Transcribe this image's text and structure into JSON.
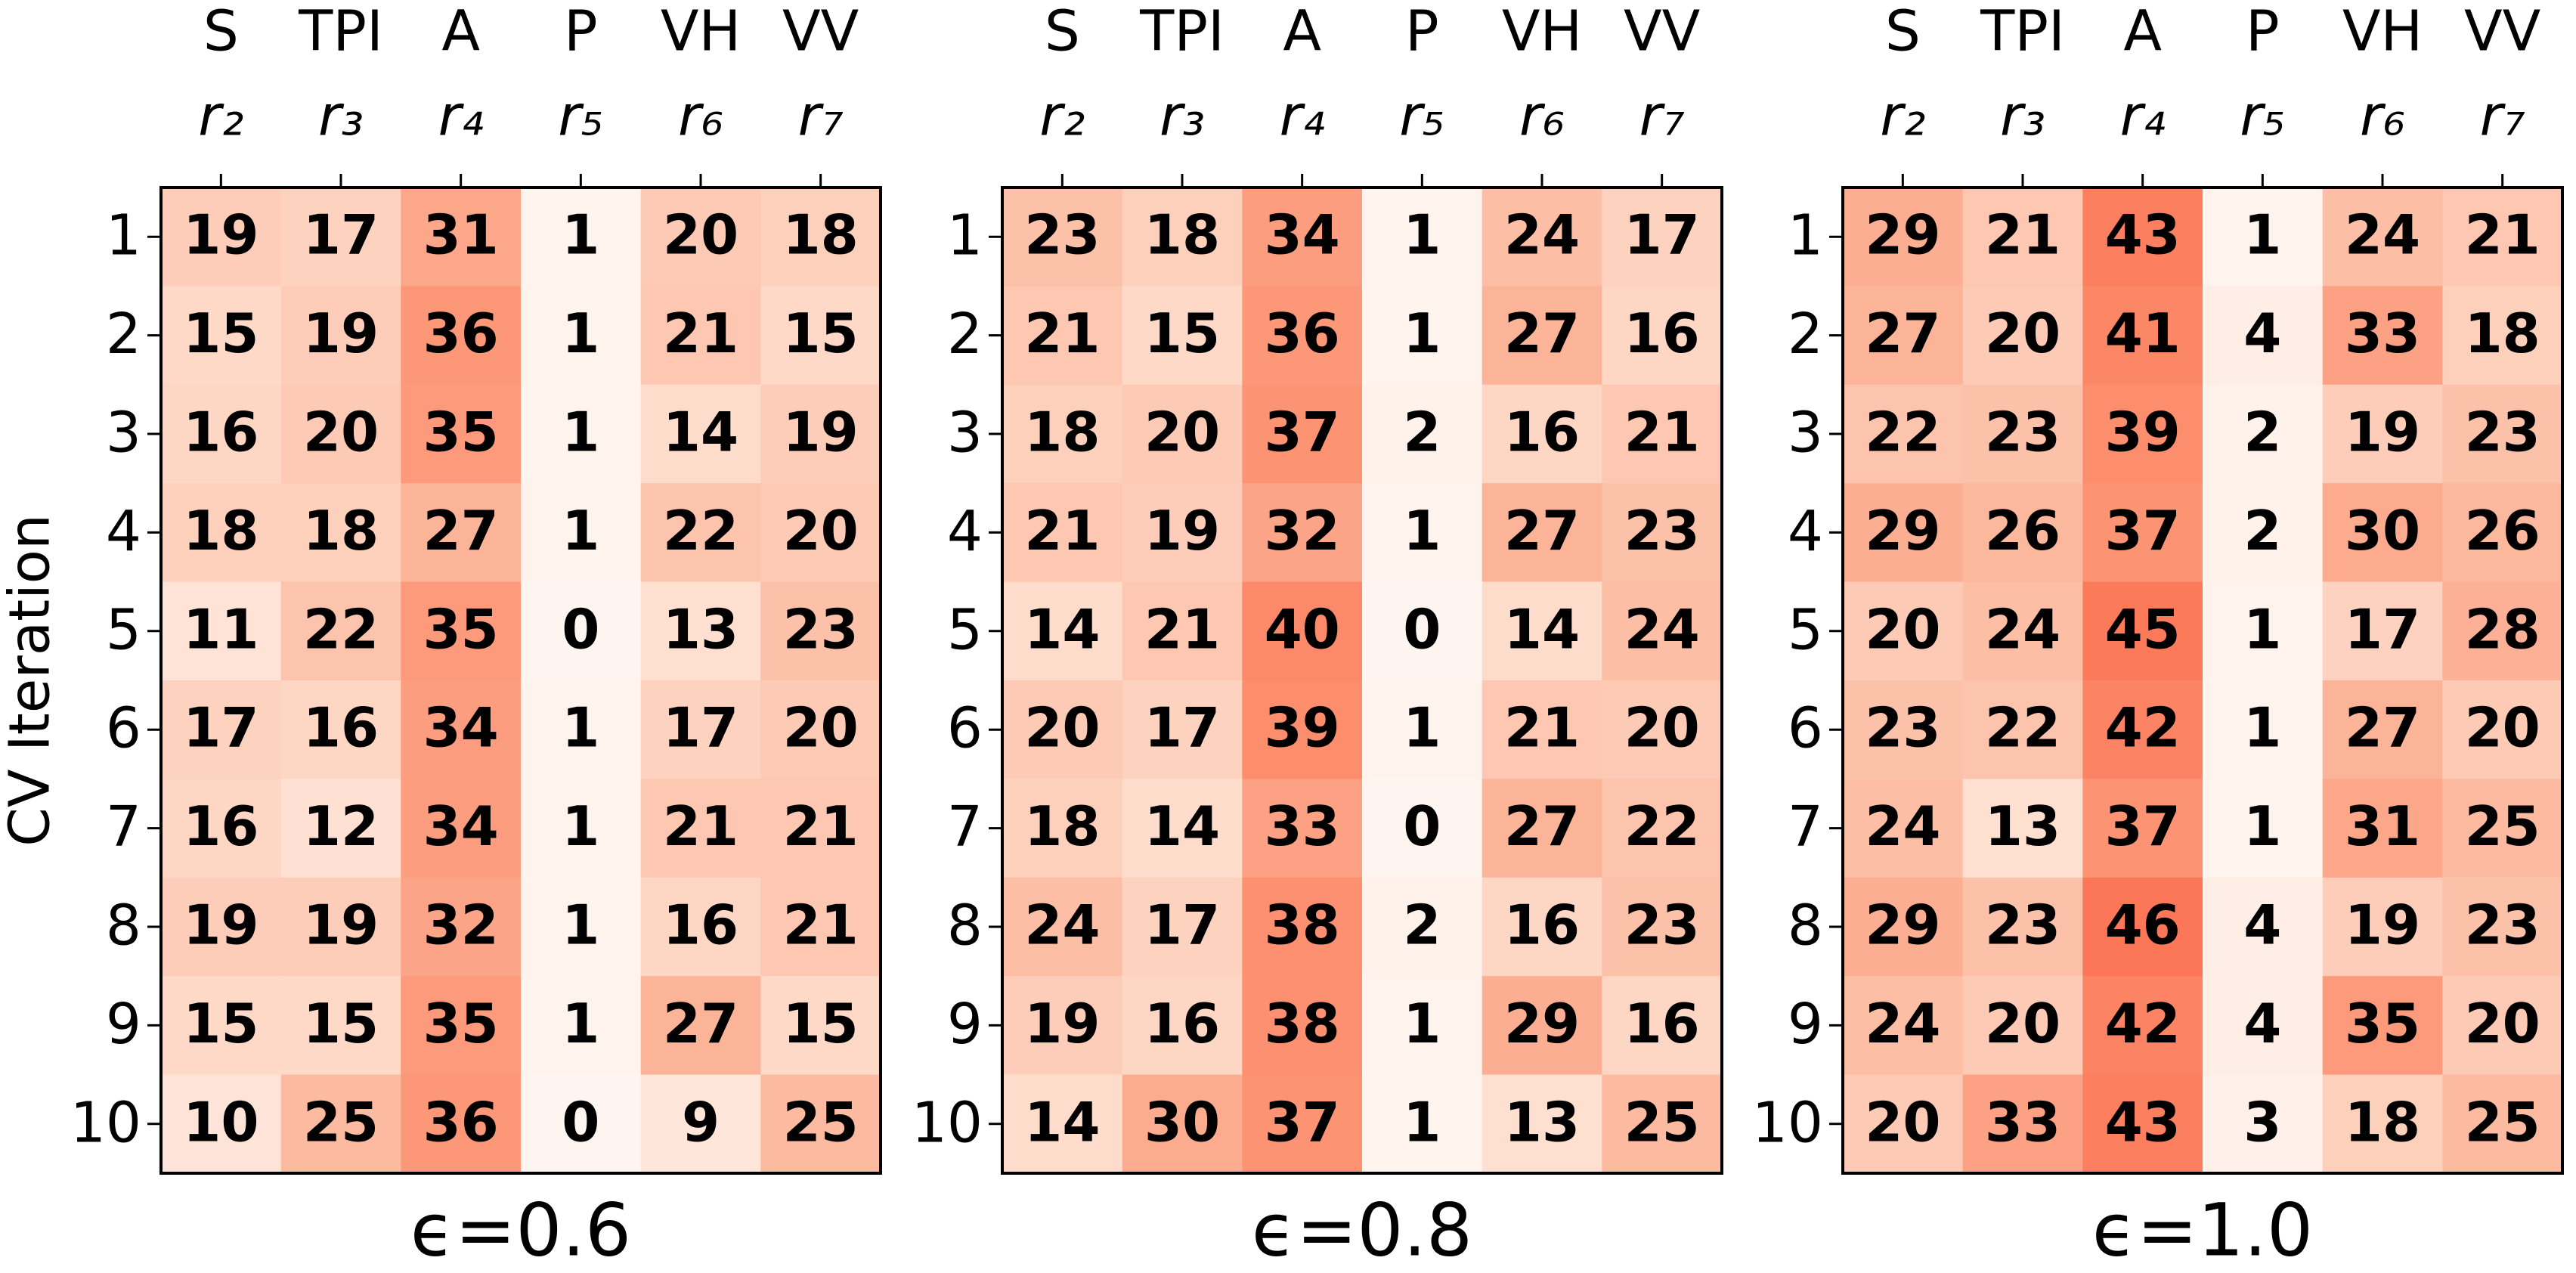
{
  "chart_data": [
    {
      "type": "heatmap",
      "title": "ϵ=0.6",
      "y_label": "CV Iteration",
      "x_categories": [
        "S",
        "TPI",
        "A",
        "P",
        "VH",
        "VV"
      ],
      "x_sublabels": [
        "r₂",
        "r₃",
        "r₄",
        "r₅",
        "r₆",
        "r₇"
      ],
      "y_categories": [
        1,
        2,
        3,
        4,
        5,
        6,
        7,
        8,
        9,
        10
      ],
      "colormap": "Reds",
      "color_range": [
        0,
        100
      ],
      "values": [
        [
          19,
          17,
          31,
          1,
          20,
          18
        ],
        [
          15,
          19,
          36,
          1,
          21,
          15
        ],
        [
          16,
          20,
          35,
          1,
          14,
          19
        ],
        [
          18,
          18,
          27,
          1,
          22,
          20
        ],
        [
          11,
          22,
          35,
          0,
          13,
          23
        ],
        [
          17,
          16,
          34,
          1,
          17,
          20
        ],
        [
          16,
          12,
          34,
          1,
          21,
          21
        ],
        [
          19,
          19,
          32,
          1,
          16,
          21
        ],
        [
          15,
          15,
          35,
          1,
          27,
          15
        ],
        [
          10,
          25,
          36,
          0,
          9,
          25
        ]
      ]
    },
    {
      "type": "heatmap",
      "title": "ϵ=0.8",
      "x_categories": [
        "S",
        "TPI",
        "A",
        "P",
        "VH",
        "VV"
      ],
      "x_sublabels": [
        "r₂",
        "r₃",
        "r₄",
        "r₅",
        "r₆",
        "r₇"
      ],
      "y_categories": [
        1,
        2,
        3,
        4,
        5,
        6,
        7,
        8,
        9,
        10
      ],
      "colormap": "Reds",
      "color_range": [
        0,
        100
      ],
      "values": [
        [
          23,
          18,
          34,
          1,
          24,
          17
        ],
        [
          21,
          15,
          36,
          1,
          27,
          16
        ],
        [
          18,
          20,
          37,
          2,
          16,
          21
        ],
        [
          21,
          19,
          32,
          1,
          27,
          23
        ],
        [
          14,
          21,
          40,
          0,
          14,
          24
        ],
        [
          20,
          17,
          39,
          1,
          21,
          20
        ],
        [
          18,
          14,
          33,
          0,
          27,
          22
        ],
        [
          24,
          17,
          38,
          2,
          16,
          23
        ],
        [
          19,
          16,
          38,
          1,
          29,
          16
        ],
        [
          14,
          30,
          37,
          1,
          13,
          25
        ]
      ]
    },
    {
      "type": "heatmap",
      "title": "ϵ=1.0",
      "x_categories": [
        "S",
        "TPI",
        "A",
        "P",
        "VH",
        "VV"
      ],
      "x_sublabels": [
        "r₂",
        "r₃",
        "r₄",
        "r₅",
        "r₆",
        "r₇"
      ],
      "y_categories": [
        1,
        2,
        3,
        4,
        5,
        6,
        7,
        8,
        9,
        10
      ],
      "colormap": "Reds",
      "color_range": [
        0,
        100
      ],
      "values": [
        [
          29,
          21,
          43,
          1,
          24,
          21
        ],
        [
          27,
          20,
          41,
          4,
          33,
          18
        ],
        [
          22,
          23,
          39,
          2,
          19,
          23
        ],
        [
          29,
          26,
          37,
          2,
          30,
          26
        ],
        [
          20,
          24,
          45,
          1,
          17,
          28
        ],
        [
          23,
          22,
          42,
          1,
          27,
          20
        ],
        [
          24,
          13,
          37,
          1,
          31,
          25
        ],
        [
          29,
          23,
          46,
          4,
          19,
          23
        ],
        [
          24,
          20,
          42,
          4,
          35,
          20
        ],
        [
          20,
          33,
          43,
          3,
          18,
          25
        ]
      ]
    }
  ]
}
